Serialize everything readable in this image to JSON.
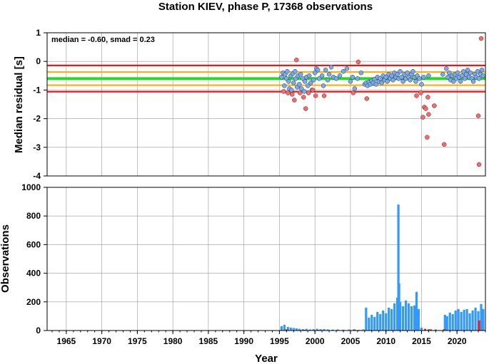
{
  "chart_data": [
    {
      "type": "scatter",
      "title": "Station KIEV, phase P, 17368 observations",
      "ylabel": "Median residual [s]",
      "xlabel": "",
      "annotation": "median = -0.60, smad = 0.23",
      "xlim": [
        1962.3,
        2024.0
      ],
      "ylim": [
        -4,
        1
      ],
      "yticks": [
        1,
        0,
        -1,
        -2,
        -3,
        -4
      ],
      "grid": true,
      "reference_lines": [
        {
          "name": "median",
          "value": -0.6,
          "color": "#22dd22"
        },
        {
          "name": "1 smad",
          "values": [
            -0.37,
            -0.83
          ],
          "color": "#ffaa00"
        },
        {
          "name": "2 smad",
          "values": [
            -0.14,
            -1.06
          ],
          "color": "#ff0000"
        }
      ],
      "series": [
        {
          "color": "#77aaee",
          "points": [
            [
              1995.3,
              -0.55
            ],
            [
              1995.5,
              -0.4
            ],
            [
              1995.7,
              -0.85
            ],
            [
              1995.8,
              -0.45
            ],
            [
              1996.0,
              -0.6
            ],
            [
              1996.1,
              -0.35
            ],
            [
              1996.3,
              -0.7
            ],
            [
              1996.4,
              -0.95
            ],
            [
              1996.6,
              -0.5
            ],
            [
              1996.7,
              -1.0
            ],
            [
              1996.9,
              -0.42
            ],
            [
              1997.0,
              -0.75
            ],
            [
              1997.2,
              -0.35
            ],
            [
              1997.3,
              -0.6
            ],
            [
              1997.5,
              -0.9
            ],
            [
              1997.6,
              -0.5
            ],
            [
              1997.8,
              -0.8
            ],
            [
              1998.0,
              -0.45
            ],
            [
              1998.1,
              -0.95
            ],
            [
              1998.3,
              -0.6
            ],
            [
              1998.5,
              -1.05
            ],
            [
              1998.6,
              -0.7
            ],
            [
              1998.8,
              -0.55
            ],
            [
              1999.0,
              -0.85
            ],
            [
              1999.2,
              -0.5
            ],
            [
              1999.4,
              -0.75
            ],
            [
              1999.6,
              -1.0
            ],
            [
              1999.8,
              -0.65
            ],
            [
              2000.0,
              -0.4
            ],
            [
              2000.2,
              -0.25
            ],
            [
              2000.4,
              -0.3
            ],
            [
              2000.6,
              -0.6
            ],
            [
              2001.0,
              -0.5
            ],
            [
              2001.2,
              -0.85
            ],
            [
              2001.5,
              -0.3
            ],
            [
              2001.8,
              -0.65
            ],
            [
              2002.0,
              -0.45
            ],
            [
              2002.3,
              -0.2
            ],
            [
              2002.6,
              -0.55
            ],
            [
              2003.0,
              -0.6
            ],
            [
              2003.5,
              -0.5
            ],
            [
              2004.0,
              -0.35
            ],
            [
              2004.5,
              -0.25
            ],
            [
              2005.0,
              -0.7
            ],
            [
              2005.3,
              -0.55
            ],
            [
              2005.6,
              -0.95
            ],
            [
              2006.0,
              -0.6
            ],
            [
              2006.5,
              -0.4
            ],
            [
              2007.0,
              -0.8
            ],
            [
              2007.2,
              -0.75
            ],
            [
              2007.4,
              -0.85
            ],
            [
              2007.6,
              -0.72
            ],
            [
              2007.8,
              -0.8
            ],
            [
              2008.0,
              -0.68
            ],
            [
              2008.2,
              -0.75
            ],
            [
              2008.4,
              -0.62
            ],
            [
              2008.6,
              -0.8
            ],
            [
              2008.8,
              -0.55
            ],
            [
              2009.0,
              -0.7
            ],
            [
              2009.2,
              -0.6
            ],
            [
              2009.4,
              -0.75
            ],
            [
              2009.6,
              -0.5
            ],
            [
              2009.8,
              -0.65
            ],
            [
              2010.0,
              -0.55
            ],
            [
              2010.2,
              -0.7
            ],
            [
              2010.4,
              -0.45
            ],
            [
              2010.6,
              -0.6
            ],
            [
              2010.8,
              -0.5
            ],
            [
              2011.0,
              -0.65
            ],
            [
              2011.2,
              -0.4
            ],
            [
              2011.4,
              -0.55
            ],
            [
              2011.6,
              -0.45
            ],
            [
              2011.8,
              -0.6
            ],
            [
              2012.0,
              -0.35
            ],
            [
              2012.2,
              -0.55
            ],
            [
              2012.4,
              -0.7
            ],
            [
              2012.6,
              -0.45
            ],
            [
              2012.8,
              -0.6
            ],
            [
              2013.0,
              -0.4
            ],
            [
              2013.2,
              -0.55
            ],
            [
              2013.4,
              -0.65
            ],
            [
              2013.6,
              -0.45
            ],
            [
              2013.8,
              -0.35
            ],
            [
              2014.0,
              -0.55
            ],
            [
              2014.2,
              -0.7
            ],
            [
              2014.4,
              -0.5
            ],
            [
              2014.7,
              -0.6
            ],
            [
              2015.0,
              -0.8
            ],
            [
              2015.3,
              -0.55
            ],
            [
              2016.0,
              -0.5
            ],
            [
              2018.0,
              -0.45
            ],
            [
              2018.5,
              -0.25
            ],
            [
              2018.7,
              -0.55
            ],
            [
              2018.9,
              -0.4
            ],
            [
              2019.1,
              -0.65
            ],
            [
              2019.3,
              -0.5
            ],
            [
              2019.5,
              -0.7
            ],
            [
              2019.7,
              -0.45
            ],
            [
              2019.9,
              -0.6
            ],
            [
              2020.1,
              -0.4
            ],
            [
              2020.3,
              -0.55
            ],
            [
              2020.5,
              -0.7
            ],
            [
              2020.7,
              -0.5
            ],
            [
              2020.9,
              -0.35
            ],
            [
              2021.1,
              -0.6
            ],
            [
              2021.3,
              -0.45
            ],
            [
              2021.5,
              -0.3
            ],
            [
              2021.7,
              -0.55
            ],
            [
              2021.9,
              -0.4
            ],
            [
              2022.1,
              -0.6
            ],
            [
              2022.3,
              -0.7
            ],
            [
              2022.5,
              -0.45
            ],
            [
              2022.7,
              -0.55
            ],
            [
              2022.9,
              -0.35
            ],
            [
              2023.1,
              -0.6
            ],
            [
              2023.3,
              -0.45
            ],
            [
              2023.5,
              -0.3
            ],
            [
              2023.7,
              -0.5
            ]
          ]
        },
        {
          "color": "#ff6666",
          "points": [
            [
              1995.6,
              -1.05
            ],
            [
              1996.2,
              -1.1
            ],
            [
              1996.8,
              -1.15
            ],
            [
              1997.1,
              -1.35
            ],
            [
              1997.4,
              0.05
            ],
            [
              1997.9,
              -1.1
            ],
            [
              1998.4,
              -1.25
            ],
            [
              1998.7,
              -1.65
            ],
            [
              1999.1,
              -1.1
            ],
            [
              1999.7,
              -1.0
            ],
            [
              2000.1,
              -1.2
            ],
            [
              2001.3,
              -1.2
            ],
            [
              2005.4,
              -1.1
            ],
            [
              2006.1,
              -0.02
            ],
            [
              2007.3,
              -1.3
            ],
            [
              2014.3,
              -1.2
            ],
            [
              2014.9,
              -1.1
            ],
            [
              2015.2,
              -1.95
            ],
            [
              2015.4,
              -1.6
            ],
            [
              2015.6,
              -1.65
            ],
            [
              2015.8,
              -2.65
            ],
            [
              2015.9,
              -1.25
            ],
            [
              2016.0,
              -1.85
            ],
            [
              2016.8,
              -1.55
            ],
            [
              2018.2,
              -2.9
            ],
            [
              2023.0,
              -1.9
            ],
            [
              2023.1,
              -3.6
            ],
            [
              2023.4,
              0.8
            ]
          ]
        }
      ]
    },
    {
      "type": "bar",
      "title": "",
      "ylabel": "Observations",
      "xlabel": "Year",
      "xlim": [
        1962.3,
        2024.0
      ],
      "ylim": [
        0,
        1000
      ],
      "xticks": [
        1965,
        1970,
        1975,
        1980,
        1985,
        1990,
        1995,
        2000,
        2005,
        2010,
        2015,
        2020
      ],
      "yticks": [
        1000,
        800,
        600,
        400,
        200,
        0
      ],
      "grid": true,
      "series": [
        {
          "color": "#3399ff",
          "x": [
            1995.3,
            1995.7,
            1996.2,
            1996.6,
            1997.0,
            1997.4,
            1997.8,
            1998.3,
            1998.8,
            1999.3,
            1999.8,
            2000.3,
            2000.8,
            2001.3,
            2001.8,
            2002.5,
            2003.2,
            2004.0,
            2004.8,
            2005.5,
            2006.2,
            2006.8,
            2007.2,
            2007.6,
            2008.0,
            2008.4,
            2008.8,
            2009.2,
            2009.6,
            2010.0,
            2010.4,
            2010.8,
            2011.2,
            2011.6,
            2011.75,
            2011.85,
            2012.0,
            2012.4,
            2012.8,
            2013.2,
            2013.6,
            2014.0,
            2014.3,
            2014.6,
            2015.0,
            2016.0,
            2017.0,
            2018.3,
            2018.6,
            2019.0,
            2019.4,
            2019.8,
            2020.2,
            2020.6,
            2021.0,
            2021.4,
            2021.8,
            2022.2,
            2022.6,
            2023.0,
            2023.4,
            2023.7
          ],
          "values": [
            30,
            40,
            25,
            20,
            18,
            15,
            12,
            10,
            12,
            8,
            10,
            12,
            9,
            10,
            8,
            7,
            8,
            6,
            7,
            9,
            5,
            8,
            160,
            90,
            110,
            95,
            130,
            115,
            140,
            120,
            160,
            150,
            190,
            230,
            880,
            330,
            200,
            170,
            210,
            190,
            170,
            175,
            270,
            150,
            20,
            10,
            8,
            110,
            100,
            125,
            115,
            140,
            150,
            130,
            145,
            150,
            120,
            140,
            160,
            135,
            185,
            150
          ]
        },
        {
          "color": "#ee2222",
          "x": [
            1996.0,
            1998.5,
            2000.5,
            2005.6,
            2015.5,
            2016.3,
            2018.2,
            2023.1
          ],
          "values": [
            8,
            5,
            4,
            6,
            12,
            8,
            10,
            70
          ]
        }
      ]
    }
  ]
}
